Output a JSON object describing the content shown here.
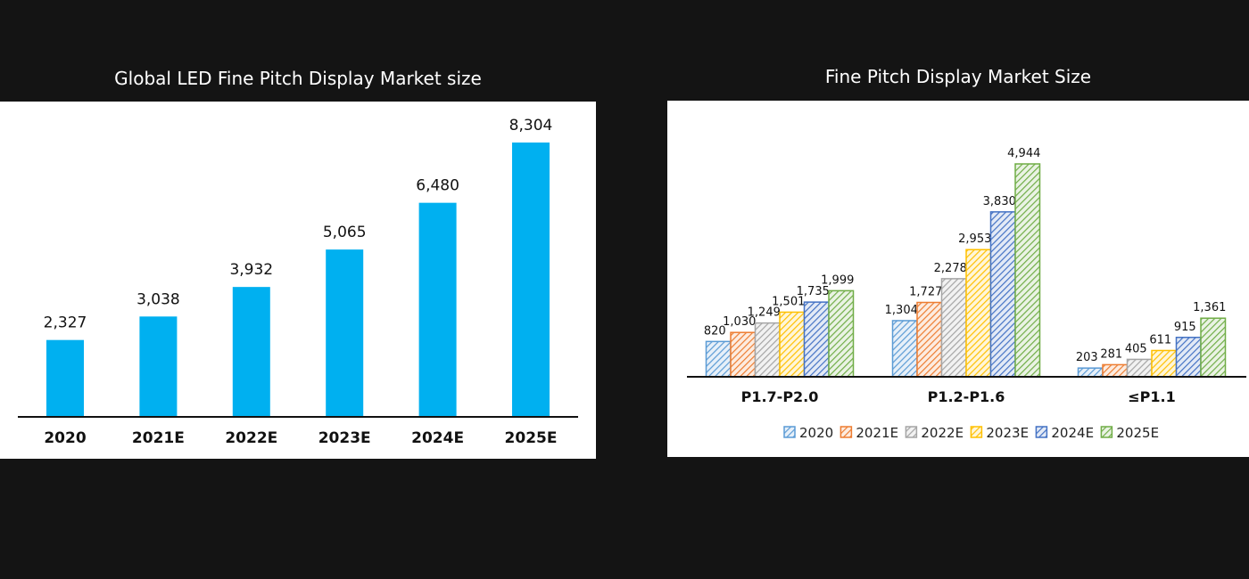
{
  "chart_data": [
    {
      "type": "bar",
      "title": "Global LED Fine Pitch Display Market size",
      "categories": [
        "2020",
        "2021E",
        "2022E",
        "2023E",
        "2024E",
        "2025E"
      ],
      "values": [
        2327,
        3038,
        3932,
        5065,
        6480,
        8304
      ],
      "labels": [
        "2,327",
        "3,038",
        "3,932",
        "5,065",
        "6,480",
        "8,304"
      ],
      "color": "#00b0f0",
      "ylim": [
        0,
        8304
      ],
      "grid": false
    },
    {
      "type": "bar",
      "title": "Fine Pitch Display Market Size",
      "categories": [
        "P1.7-P2.0",
        "P1.2-P1.6",
        "≤P1.1"
      ],
      "series": [
        {
          "name": "2020",
          "values": [
            820,
            1304,
            203
          ],
          "color": "#5b9bd5"
        },
        {
          "name": "2021E",
          "values": [
            1030,
            1727,
            281
          ],
          "color": "#ed7d31"
        },
        {
          "name": "2022E",
          "values": [
            1249,
            2278,
            405
          ],
          "color": "#a5a5a5"
        },
        {
          "name": "2023E",
          "values": [
            1501,
            2953,
            611
          ],
          "color": "#ffc000"
        },
        {
          "name": "2024E",
          "values": [
            1735,
            3830,
            915
          ],
          "color": "#4472c4"
        },
        {
          "name": "2025E",
          "values": [
            1999,
            4944,
            1361
          ],
          "color": "#70ad47"
        }
      ],
      "pattern": "diagonal-hatch",
      "legend": "bottom",
      "ylim": [
        0,
        4944
      ],
      "grid": false
    }
  ]
}
